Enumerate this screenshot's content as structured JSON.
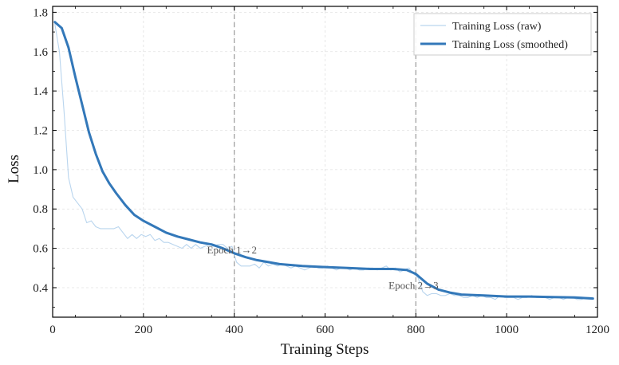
{
  "chart_data": {
    "type": "line",
    "title": "",
    "xlabel": "Training Steps",
    "ylabel": "Loss",
    "xlim": [
      0,
      1200
    ],
    "ylim": [
      0.25,
      1.83
    ],
    "xticks": [
      "0",
      "200",
      "400",
      "600",
      "800",
      "1000",
      "1200"
    ],
    "yticks": [
      "0.4",
      "0.6",
      "0.8",
      "1.0",
      "1.2",
      "1.4",
      "1.6",
      "1.8"
    ],
    "grid": true,
    "legend_position": "top-right",
    "series": [
      {
        "name": "Training Loss (raw)",
        "color": "#b9d5ee",
        "x": [
          5,
          15,
          25,
          35,
          45,
          55,
          65,
          75,
          85,
          95,
          105,
          115,
          125,
          135,
          145,
          155,
          165,
          175,
          185,
          195,
          205,
          215,
          225,
          235,
          245,
          255,
          265,
          275,
          285,
          295,
          305,
          315,
          325,
          335,
          345,
          355,
          365,
          375,
          385,
          395,
          405,
          415,
          425,
          435,
          445,
          455,
          465,
          475,
          485,
          495,
          505,
          515,
          525,
          535,
          545,
          555,
          565,
          575,
          585,
          595,
          605,
          615,
          625,
          635,
          645,
          655,
          665,
          675,
          685,
          695,
          705,
          715,
          725,
          735,
          745,
          755,
          765,
          775,
          785,
          795,
          805,
          815,
          825,
          835,
          845,
          855,
          865,
          875,
          885,
          895,
          905,
          915,
          925,
          935,
          945,
          955,
          965,
          975,
          985,
          995,
          1005,
          1015,
          1025,
          1035,
          1045,
          1055,
          1065,
          1075,
          1085,
          1095,
          1105,
          1115,
          1125,
          1135,
          1145,
          1155,
          1165,
          1175,
          1185
        ],
        "values": [
          1.74,
          1.6,
          1.3,
          0.96,
          0.86,
          0.83,
          0.8,
          0.73,
          0.74,
          0.71,
          0.7,
          0.7,
          0.7,
          0.7,
          0.71,
          0.68,
          0.65,
          0.67,
          0.65,
          0.67,
          0.66,
          0.67,
          0.64,
          0.65,
          0.63,
          0.63,
          0.62,
          0.61,
          0.6,
          0.62,
          0.6,
          0.62,
          0.6,
          0.61,
          0.62,
          0.61,
          0.62,
          0.62,
          0.6,
          0.61,
          0.53,
          0.51,
          0.51,
          0.51,
          0.52,
          0.5,
          0.53,
          0.51,
          0.52,
          0.51,
          0.52,
          0.51,
          0.5,
          0.51,
          0.5,
          0.49,
          0.5,
          0.51,
          0.5,
          0.5,
          0.51,
          0.5,
          0.49,
          0.5,
          0.5,
          0.49,
          0.5,
          0.49,
          0.49,
          0.5,
          0.5,
          0.49,
          0.5,
          0.51,
          0.49,
          0.5,
          0.48,
          0.49,
          0.5,
          0.47,
          0.45,
          0.38,
          0.36,
          0.37,
          0.37,
          0.36,
          0.36,
          0.37,
          0.36,
          0.36,
          0.35,
          0.35,
          0.36,
          0.35,
          0.36,
          0.35,
          0.35,
          0.34,
          0.36,
          0.35,
          0.35,
          0.35,
          0.34,
          0.35,
          0.35,
          0.36,
          0.35,
          0.35,
          0.35,
          0.34,
          0.35,
          0.35,
          0.34,
          0.35,
          0.35,
          0.34,
          0.34,
          0.35,
          0.35
        ]
      },
      {
        "name": "Training Loss (smoothed)",
        "color": "#3378b9",
        "x": [
          5,
          20,
          35,
          50,
          65,
          80,
          95,
          110,
          125,
          140,
          160,
          180,
          200,
          225,
          250,
          275,
          300,
          325,
          350,
          375,
          400,
          425,
          450,
          475,
          500,
          550,
          600,
          650,
          700,
          750,
          780,
          800,
          825,
          850,
          875,
          900,
          950,
          1000,
          1050,
          1100,
          1150,
          1190
        ],
        "values": [
          1.75,
          1.72,
          1.62,
          1.47,
          1.33,
          1.19,
          1.08,
          0.99,
          0.93,
          0.88,
          0.82,
          0.77,
          0.74,
          0.71,
          0.68,
          0.66,
          0.645,
          0.63,
          0.62,
          0.6,
          0.575,
          0.555,
          0.54,
          0.53,
          0.52,
          0.51,
          0.505,
          0.5,
          0.495,
          0.495,
          0.49,
          0.47,
          0.42,
          0.39,
          0.375,
          0.365,
          0.36,
          0.355,
          0.355,
          0.352,
          0.35,
          0.345
        ]
      }
    ],
    "vlines": [
      400,
      800
    ],
    "annotations": [
      {
        "text": "Epoch 1→2",
        "x": 340,
        "y": 0.59
      },
      {
        "text": "Epoch 2→3",
        "x": 740,
        "y": 0.41
      }
    ]
  }
}
